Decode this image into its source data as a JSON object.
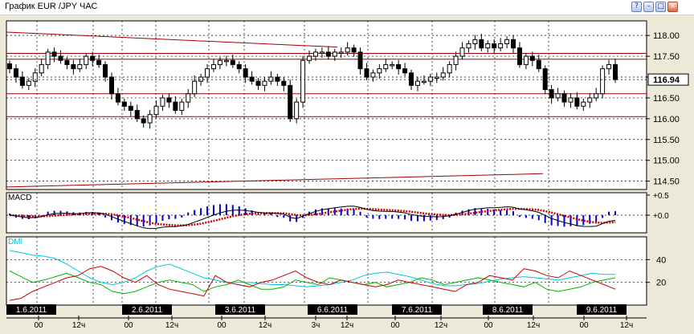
{
  "window": {
    "title": "График EUR /JPY  ЧАС",
    "buttons": {
      "help": "?",
      "minimize": "–",
      "maximize": "□",
      "close": "×"
    }
  },
  "colors": {
    "background": "#ffffff",
    "grid": "#000000",
    "candle": "#000000",
    "bull_body": "#ffffff",
    "bear_body": "#000000",
    "trend_lines": "#a00000",
    "macd_line": "#000000",
    "macd_signal": "#cc0000",
    "macd_hist": "#0000cc",
    "dmi_adx": "#00c8dc",
    "dmi_plus": "#00b400",
    "dmi_minus": "#cc0000",
    "date_tag_bg": "#000000",
    "date_tag_text": "#ffffff",
    "last_price_bg": "#ffffff"
  },
  "chart_data": [
    {
      "type": "candlestick",
      "title": "График EUR /JPY  ЧАС",
      "symbol": "EUR /JPY",
      "timeframe": "ЧАС",
      "ylim": [
        114.3,
        118.35
      ],
      "y_ticks": [
        "118.00",
        "117.50",
        "117.00",
        "116.50",
        "116.00",
        "115.50",
        "115.00",
        "114.50"
      ],
      "last_price": "116.94",
      "grid": true,
      "date_labels": [
        "1.6.2011",
        "2.6.2011",
        "3.6.2011",
        "6.6.2011",
        "7.6.2011",
        "8.6.2011",
        "9.6.2011"
      ],
      "time_labels": [
        "00",
        "12ч",
        "00",
        "12ч",
        "00",
        "12ч",
        "3ч",
        "12ч",
        "00",
        "12ч",
        "00",
        "12ч",
        "00",
        "12ч"
      ],
      "close": [
        117.2,
        117.0,
        116.8,
        116.9,
        117.1,
        117.3,
        117.6,
        117.5,
        117.4,
        117.3,
        117.2,
        117.3,
        117.5,
        117.4,
        117.3,
        117.0,
        116.6,
        116.4,
        116.3,
        116.2,
        116.0,
        115.9,
        116.1,
        116.3,
        116.5,
        116.4,
        116.2,
        116.4,
        116.6,
        116.9,
        117.0,
        117.2,
        117.3,
        117.4,
        117.4,
        117.3,
        117.2,
        117.0,
        116.9,
        116.8,
        116.9,
        117.0,
        116.9,
        116.8,
        116.0,
        116.4,
        117.4,
        117.5,
        117.6,
        117.6,
        117.5,
        117.6,
        117.6,
        117.7,
        117.6,
        117.2,
        117.0,
        117.1,
        117.2,
        117.3,
        117.3,
        117.2,
        117.1,
        116.8,
        116.9,
        116.9,
        117.0,
        117.0,
        117.1,
        117.3,
        117.5,
        117.7,
        117.8,
        117.9,
        117.7,
        117.8,
        117.7,
        117.8,
        117.9,
        117.7,
        117.3,
        117.5,
        117.4,
        117.2,
        116.7,
        116.5,
        116.6,
        116.4,
        116.5,
        116.3,
        116.4,
        116.5,
        116.6,
        117.2,
        117.3,
        116.94
      ]
    },
    {
      "type": "line",
      "title": "MACD",
      "y_ticks": [
        "+0.5",
        "+0.0"
      ],
      "series": [
        {
          "name": "macd",
          "style": "line"
        },
        {
          "name": "signal",
          "style": "dotted-line"
        },
        {
          "name": "histogram",
          "style": "bars"
        }
      ]
    },
    {
      "type": "line",
      "title": "DMI",
      "ylim": [
        0,
        60
      ],
      "y_ticks": [
        "40",
        "20"
      ],
      "series": [
        {
          "name": "adx",
          "values": [
            48,
            46,
            44,
            43,
            41,
            36,
            30,
            24,
            20,
            18,
            20,
            24,
            30,
            34,
            36,
            32,
            28,
            24,
            22,
            20,
            20,
            20,
            19,
            18,
            18,
            17,
            16,
            17,
            18,
            20,
            22,
            26,
            28,
            29,
            27,
            25,
            22,
            19,
            17,
            17,
            18,
            19,
            21,
            23,
            24,
            25,
            24,
            23,
            22,
            24,
            26,
            28,
            27,
            27
          ]
        },
        {
          "name": "+di",
          "values": [
            30,
            25,
            20,
            22,
            25,
            28,
            24,
            20,
            18,
            12,
            10,
            12,
            16,
            20,
            22,
            20,
            18,
            12,
            16,
            18,
            22,
            18,
            14,
            14,
            16,
            22,
            20,
            18,
            24,
            22,
            20,
            18,
            20,
            16,
            18,
            20,
            24,
            22,
            18,
            20,
            22,
            24,
            22,
            20,
            18,
            16,
            20,
            14,
            12,
            14,
            16,
            20,
            22,
            24
          ]
        },
        {
          "name": "-di",
          "values": [
            4,
            6,
            12,
            16,
            20,
            24,
            26,
            32,
            34,
            30,
            24,
            20,
            26,
            18,
            14,
            12,
            10,
            8,
            26,
            20,
            18,
            16,
            20,
            22,
            26,
            30,
            24,
            20,
            18,
            22,
            20,
            18,
            16,
            18,
            22,
            20,
            18,
            16,
            14,
            12,
            18,
            20,
            26,
            24,
            22,
            32,
            30,
            26,
            24,
            30,
            26,
            22,
            18,
            14
          ]
        }
      ]
    }
  ]
}
